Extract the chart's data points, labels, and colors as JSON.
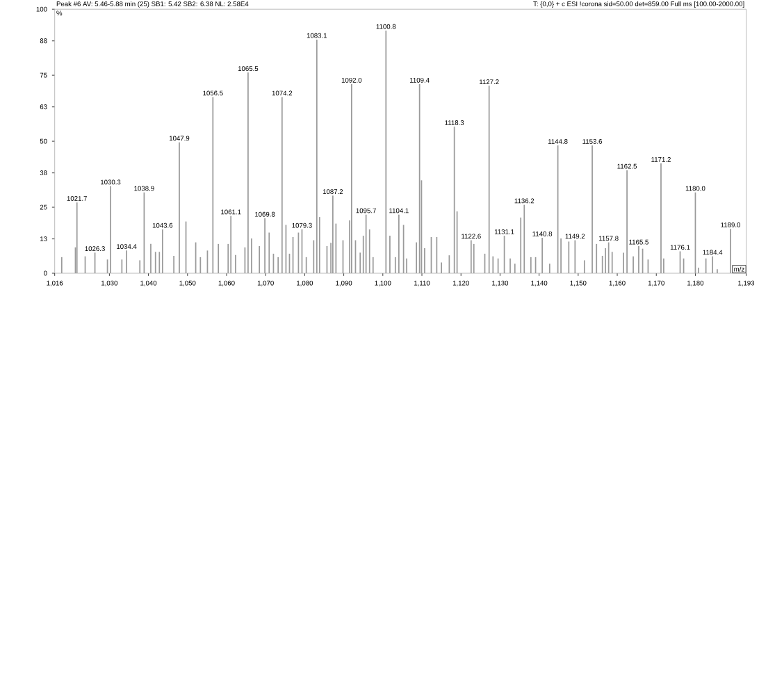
{
  "chart_data": {
    "type": "bar",
    "title": "Peak #6  AV: 5.46-5.88 min (25)  SB1: 5.42  SB2: 6.38  NL: 2.58E4",
    "subtitle": "T: {0,0}  + c ESI !corona sid=50.00  det=859.00 Full ms [100.00-2000.00]",
    "xlabel": "m/z",
    "ylabel": "%",
    "color": "#9a9a9a",
    "x": [
      1017.8,
      1021.3,
      1021.7,
      1023.8,
      1026.3,
      1029.5,
      1030.3,
      1033.2,
      1034.4,
      1037.8,
      1038.9,
      1040.6,
      1041.8,
      1042.8,
      1043.6,
      1046.5,
      1047.9,
      1049.6,
      1052.1,
      1053.3,
      1055.1,
      1056.5,
      1057.9,
      1060.4,
      1061.1,
      1062.3,
      1064.7,
      1065.5,
      1066.4,
      1068.4,
      1069.8,
      1070.9,
      1072.0,
      1073.2,
      1074.2,
      1075.2,
      1076.1,
      1077.0,
      1078.4,
      1079.3,
      1080.4,
      1082.3,
      1083.1,
      1083.8,
      1085.7,
      1086.7,
      1087.2,
      1088.0,
      1089.8,
      1091.5,
      1092.0,
      1093.0,
      1094.2,
      1095.0,
      1095.7,
      1096.6,
      1097.5,
      1100.8,
      1101.8,
      1103.2,
      1104.1,
      1105.3,
      1106.1,
      1108.6,
      1109.4,
      1109.9,
      1110.7,
      1112.4,
      1113.8,
      1115.0,
      1117.0,
      1118.3,
      1119.0,
      1122.6,
      1123.3,
      1126.1,
      1127.2,
      1128.2,
      1129.5,
      1131.1,
      1132.6,
      1133.8,
      1135.3,
      1136.2,
      1137.9,
      1139.1,
      1140.8,
      1142.7,
      1144.8,
      1145.6,
      1147.6,
      1149.2,
      1151.6,
      1153.6,
      1154.7,
      1156.2,
      1157.0,
      1157.8,
      1158.7,
      1161.6,
      1162.5,
      1164.1,
      1165.5,
      1166.5,
      1167.9,
      1171.2,
      1171.9,
      1176.1,
      1177.0,
      1180.0,
      1180.8,
      1182.7,
      1184.4,
      1185.6,
      1189.0
    ],
    "values": [
      6.1,
      9.8,
      26.8,
      6.4,
      7.8,
      5.2,
      33,
      5.2,
      8.6,
      4.9,
      30.6,
      11.1,
      8.1,
      8.1,
      16.6,
      6.6,
      49.6,
      19.6,
      11.7,
      6.1,
      8.6,
      66.7,
      11.1,
      11.1,
      21.7,
      6.9,
      9.8,
      76,
      13.2,
      10.3,
      20.8,
      15.4,
      7.4,
      6.1,
      66.7,
      18.3,
      7.4,
      13.7,
      15.4,
      16.6,
      6.1,
      12.5,
      88.5,
      21.3,
      10.3,
      11.5,
      29.4,
      18.8,
      12.5,
      20,
      71.6,
      12.5,
      7.8,
      14.2,
      22.2,
      16.6,
      6.1,
      91.9,
      14.2,
      6.1,
      22.2,
      18.3,
      5.6,
      11.7,
      71.6,
      35.2,
      9.5,
      13.7,
      13.7,
      4.1,
      6.8,
      55.5,
      23.4,
      12.5,
      11.1,
      7.4,
      71,
      6.4,
      5.6,
      14.2,
      5.6,
      3.6,
      21.1,
      25.9,
      6.1,
      6.1,
      13.4,
      3.6,
      48.4,
      13.2,
      12,
      12.5,
      4.9,
      48.4,
      11.1,
      6.6,
      9.5,
      11.7,
      8.1,
      7.8,
      39,
      6.4,
      10.3,
      9.3,
      5.2,
      41.6,
      5.6,
      8.3,
      5.6,
      30.6,
      2.1,
      5.6,
      6.4,
      1.5,
      16.8
    ],
    "xlim": [
      1016,
      1193
    ],
    "ylim": [
      0,
      100
    ],
    "xticks": [
      {
        "value": 1016,
        "label": "1,016"
      },
      {
        "value": 1030,
        "label": "1,030"
      },
      {
        "value": 1040,
        "label": "1,040"
      },
      {
        "value": 1050,
        "label": "1,050"
      },
      {
        "value": 1060,
        "label": "1,060"
      },
      {
        "value": 1070,
        "label": "1,070"
      },
      {
        "value": 1080,
        "label": "1,080"
      },
      {
        "value": 1090,
        "label": "1,090"
      },
      {
        "value": 1100,
        "label": "1,100"
      },
      {
        "value": 1110,
        "label": "1,110"
      },
      {
        "value": 1120,
        "label": "1,120"
      },
      {
        "value": 1130,
        "label": "1,130"
      },
      {
        "value": 1140,
        "label": "1,140"
      },
      {
        "value": 1150,
        "label": "1,150"
      },
      {
        "value": 1160,
        "label": "1,160"
      },
      {
        "value": 1170,
        "label": "1,170"
      },
      {
        "value": 1180,
        "label": "1,180"
      },
      {
        "value": 1193,
        "label": "1,193"
      }
    ],
    "yticks": [
      0,
      13,
      25,
      38,
      50,
      63,
      75,
      88,
      100
    ],
    "annotations": [
      {
        "text": "1021.7",
        "x": 1021.7,
        "y": 26.8
      },
      {
        "text": "1026.3",
        "x": 1026.3,
        "y": 7.8
      },
      {
        "text": "1030.3",
        "x": 1030.3,
        "y": 33
      },
      {
        "text": "1034.4",
        "x": 1034.4,
        "y": 8.6
      },
      {
        "text": "1038.9",
        "x": 1038.9,
        "y": 30.6
      },
      {
        "text": "1043.6",
        "x": 1043.6,
        "y": 16.6
      },
      {
        "text": "1047.9",
        "x": 1047.9,
        "y": 49.6
      },
      {
        "text": "1056.5",
        "x": 1056.5,
        "y": 66.7
      },
      {
        "text": "1061.1",
        "x": 1061.1,
        "y": 21.7
      },
      {
        "text": "1065.5",
        "x": 1065.5,
        "y": 76
      },
      {
        "text": "1069.8",
        "x": 1069.8,
        "y": 20.8
      },
      {
        "text": "1074.2",
        "x": 1074.2,
        "y": 66.7
      },
      {
        "text": "1079.3",
        "x": 1079.3,
        "y": 16.6
      },
      {
        "text": "1083.1",
        "x": 1083.1,
        "y": 88.5
      },
      {
        "text": "1087.2",
        "x": 1087.2,
        "y": 29.4
      },
      {
        "text": "1092.0",
        "x": 1092.0,
        "y": 71.6
      },
      {
        "text": "1095.7",
        "x": 1095.7,
        "y": 22.2
      },
      {
        "text": "1100.8",
        "x": 1100.8,
        "y": 91.9
      },
      {
        "text": "1104.1",
        "x": 1104.1,
        "y": 22.2
      },
      {
        "text": "1109.4",
        "x": 1109.4,
        "y": 71.6
      },
      {
        "text": "1118.3",
        "x": 1118.3,
        "y": 55.5
      },
      {
        "text": "1122.6",
        "x": 1122.6,
        "y": 12.5
      },
      {
        "text": "1127.2",
        "x": 1127.2,
        "y": 71
      },
      {
        "text": "1131.1",
        "x": 1131.1,
        "y": 14.2
      },
      {
        "text": "1136.2",
        "x": 1136.2,
        "y": 25.9
      },
      {
        "text": "1140.8",
        "x": 1140.8,
        "y": 13.4
      },
      {
        "text": "1144.8",
        "x": 1144.8,
        "y": 48.4
      },
      {
        "text": "1149.2",
        "x": 1149.2,
        "y": 12.5
      },
      {
        "text": "1153.6",
        "x": 1153.6,
        "y": 48.4
      },
      {
        "text": "1157.8",
        "x": 1157.8,
        "y": 11.7
      },
      {
        "text": "1162.5",
        "x": 1162.5,
        "y": 39
      },
      {
        "text": "1165.5",
        "x": 1165.5,
        "y": 10.3
      },
      {
        "text": "1171.2",
        "x": 1171.2,
        "y": 41.6
      },
      {
        "text": "1176.1",
        "x": 1176.1,
        "y": 8.3
      },
      {
        "text": "1180.0",
        "x": 1180.0,
        "y": 30.6
      },
      {
        "text": "1184.4",
        "x": 1184.4,
        "y": 6.4
      },
      {
        "text": "1189.0",
        "x": 1189.0,
        "y": 16.8
      }
    ]
  }
}
